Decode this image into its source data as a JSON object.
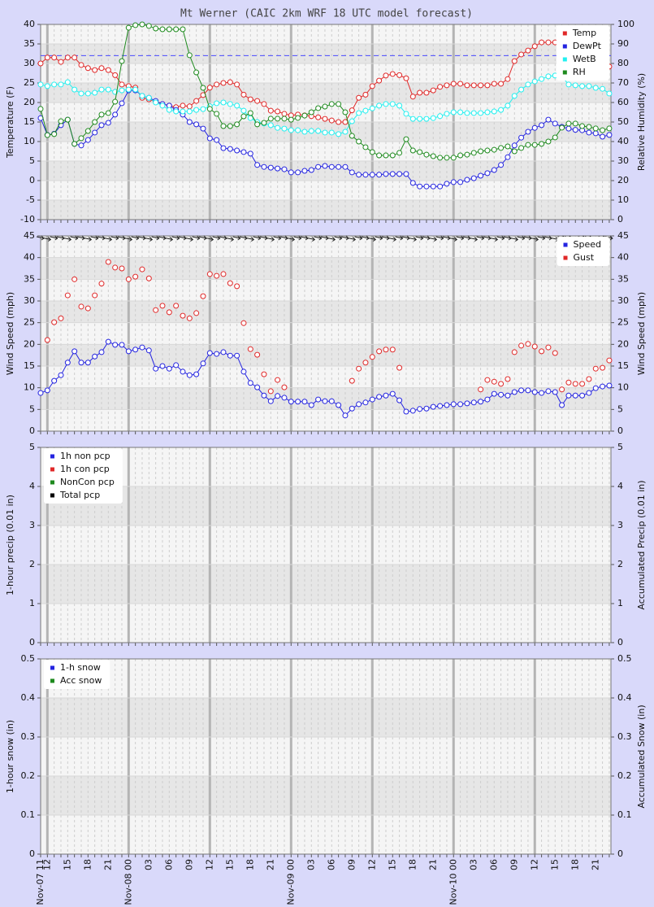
{
  "chart_data": [
    {
      "type": "line",
      "title": "Mt Werner (CAIC 2km WRF 18 UTC model forecast)",
      "ylabel": "Temperature (F)",
      "y2label": "Relative Humidity (%)",
      "ylim": [
        -10,
        40
      ],
      "yticks": [
        -10,
        -5,
        0,
        5,
        10,
        15,
        20,
        25,
        30,
        35,
        40
      ],
      "y2lim": [
        0,
        100
      ],
      "y2ticks": [
        0,
        10,
        20,
        30,
        40,
        50,
        60,
        70,
        80,
        90,
        100
      ],
      "reference_line": 32,
      "reference_color": "#4a4aff",
      "legend": "upper right",
      "series": [
        {
          "name": "Temp",
          "color": "#e02828",
          "values": [
            30,
            31.5,
            31.5,
            30.4,
            31.5,
            31.5,
            29.6,
            28.8,
            28.3,
            28.8,
            28.3,
            27,
            24.6,
            24.2,
            23.8,
            21.2,
            20.8,
            20.2,
            19.6,
            19.2,
            18.8,
            19.2,
            19,
            20.4,
            21.9,
            23.8,
            24.6,
            25,
            25.2,
            24.6,
            22,
            20.8,
            20.4,
            19.6,
            17.9,
            17.7,
            17.1,
            16.7,
            16.9,
            16.7,
            16.5,
            16.2,
            15.8,
            15.4,
            15,
            15,
            18,
            21.2,
            22,
            24.2,
            25.6,
            26.9,
            27.3,
            27,
            26.2,
            21.5,
            22.5,
            22.5,
            23.1,
            24,
            24.4,
            24.8,
            24.8,
            24.4,
            24.4,
            24.4,
            24.4,
            24.8,
            24.8,
            26,
            30.6,
            32.3,
            33.3,
            34.4,
            35.4,
            35.4,
            35.4,
            35,
            34,
            33,
            32,
            31,
            30,
            29.5,
            29.2
          ]
        },
        {
          "name": "DewPt",
          "color": "#2424e0",
          "values": [
            16,
            11.7,
            12,
            14.2,
            15.6,
            9.4,
            9,
            10.4,
            12.3,
            14.2,
            14.8,
            16.9,
            19.8,
            23.1,
            23.1,
            21.7,
            21.2,
            20.4,
            19.6,
            19.2,
            18.1,
            16.9,
            15,
            14.4,
            13.3,
            10.8,
            10.4,
            8.3,
            8.1,
            7.7,
            7.3,
            6.9,
            4,
            3.5,
            3.3,
            3.1,
            2.9,
            2.1,
            2.1,
            2.5,
            2.7,
            3.5,
            3.75,
            3.5,
            3.5,
            3.5,
            2.1,
            1.5,
            1.5,
            1.5,
            1.5,
            1.7,
            1.7,
            1.7,
            1.7,
            -0.6,
            -1.5,
            -1.5,
            -1.5,
            -1.5,
            -0.8,
            -0.4,
            -0.4,
            0.2,
            0.6,
            1.25,
            1.9,
            2.7,
            4,
            6,
            9,
            11,
            12.5,
            13.5,
            14.2,
            15.6,
            14.6,
            13.75,
            13.3,
            13,
            12.9,
            12.3,
            12.1,
            11.25,
            11.7
          ]
        },
        {
          "name": "WetB",
          "color": "#22f0f0",
          "values": [
            24.6,
            24.2,
            24.6,
            24.6,
            25.2,
            23.3,
            22.3,
            22.3,
            22.5,
            23.3,
            23.3,
            22.7,
            23.1,
            23.3,
            23.3,
            21.7,
            21.2,
            20,
            19.2,
            18.1,
            17.7,
            17.7,
            17.7,
            18.1,
            18.3,
            19,
            19.8,
            20,
            19.6,
            19.2,
            17.9,
            16,
            15,
            14.6,
            14.2,
            13.5,
            13.3,
            12.9,
            12.9,
            12.5,
            12.7,
            12.7,
            12.3,
            12.3,
            11.9,
            12.5,
            15.2,
            17.3,
            17.9,
            18.5,
            19.2,
            19.6,
            19.6,
            19.2,
            17.1,
            15.8,
            15.8,
            15.8,
            16,
            16.5,
            17.1,
            17.5,
            17.5,
            17.3,
            17.3,
            17.3,
            17.5,
            17.7,
            18.1,
            19.2,
            21.7,
            23.3,
            24.6,
            25.4,
            26,
            26.7,
            26.9,
            26.7,
            24.6,
            24.4,
            24.2,
            24.2,
            23.75,
            23.5,
            22.3
          ]
        },
        {
          "name": "RH",
          "color": "#1e8a1e",
          "axis": "y2",
          "values": [
            56.7,
            43.3,
            43.8,
            50.4,
            51.2,
            38.8,
            41.7,
            45.4,
            50,
            53.8,
            54.6,
            60.4,
            81.2,
            98.3,
            99.6,
            100,
            99.2,
            97.9,
            97.5,
            97.5,
            97.5,
            97.5,
            84.2,
            75.4,
            67.5,
            56.7,
            54.2,
            47.9,
            47.9,
            48.8,
            52.9,
            54.6,
            48.8,
            49.6,
            51.7,
            51.7,
            51.7,
            51.2,
            52.1,
            53.3,
            55,
            57.1,
            57.9,
            59.2,
            59.2,
            55,
            42.9,
            40,
            37.1,
            34.6,
            32.9,
            32.9,
            32.9,
            34.2,
            41.2,
            35.4,
            34.6,
            33.3,
            32.5,
            31.7,
            31.7,
            31.7,
            32.9,
            33.3,
            34.2,
            35,
            35.4,
            35.8,
            36.7,
            37.5,
            35,
            36.7,
            38.3,
            38.3,
            38.8,
            40,
            42.1,
            47.1,
            49.2,
            49.2,
            47.9,
            47.5,
            46.7,
            45.8,
            46.7
          ]
        }
      ]
    },
    {
      "type": "line",
      "ylabel": "Wind Speed (mph)",
      "y2label": "Wind Speed (mph)",
      "ylim": [
        0,
        45
      ],
      "yticks": [
        0,
        5,
        10,
        15,
        20,
        25,
        30,
        35,
        40,
        45
      ],
      "y2lim": [
        0,
        45
      ],
      "y2ticks": [
        0,
        5,
        10,
        15,
        20,
        25,
        30,
        35,
        40,
        45
      ],
      "wind_barbs": true,
      "legend": "upper right",
      "series": [
        {
          "name": "Speed",
          "color": "#2424e0",
          "values": [
            8.8,
            9.4,
            11.6,
            12.9,
            15.8,
            18.4,
            15.8,
            15.8,
            17.2,
            18.2,
            20.6,
            19.9,
            19.9,
            18.4,
            18.8,
            19.3,
            18.6,
            14.4,
            15,
            14.4,
            15.2,
            13.7,
            12.9,
            13.1,
            15.6,
            18,
            17.8,
            18.2,
            17.4,
            17.4,
            13.7,
            11.1,
            10.1,
            8.2,
            6.9,
            8.1,
            7.7,
            6.8,
            6.8,
            6.8,
            6,
            7.3,
            6.9,
            6.9,
            6,
            3.6,
            5.2,
            6.2,
            6.6,
            7.3,
            7.9,
            8.2,
            8.6,
            7.1,
            4.5,
            4.7,
            5.1,
            5.2,
            5.6,
            5.8,
            6,
            6.2,
            6.2,
            6.4,
            6.6,
            6.8,
            7.3,
            8.6,
            8.4,
            8.2,
            9,
            9.4,
            9.4,
            9,
            8.8,
            9.2,
            9,
            6,
            8.2,
            8.2,
            8.2,
            8.8,
            9.9,
            10.3,
            10.5
          ]
        },
        {
          "name": "Gust",
          "color": "#e02828",
          "lines": false,
          "values": [
            null,
            21,
            25.1,
            26,
            31.3,
            35,
            28.7,
            28.3,
            31.3,
            34,
            39,
            37.7,
            37.5,
            35,
            35.6,
            37.3,
            35.2,
            27.9,
            28.9,
            27.4,
            28.9,
            26.6,
            26,
            27.2,
            31.1,
            36.2,
            35.8,
            36.2,
            34.1,
            33.4,
            24.9,
            18.9,
            17.6,
            13.1,
            9.2,
            11.8,
            10.1,
            null,
            null,
            null,
            null,
            null,
            null,
            null,
            null,
            null,
            11.6,
            14.4,
            15.8,
            17.1,
            18.4,
            18.8,
            18.8,
            14.6,
            null,
            null,
            null,
            null,
            null,
            null,
            null,
            null,
            null,
            null,
            null,
            9.6,
            11.8,
            11.4,
            10.9,
            12,
            18.2,
            19.7,
            20.1,
            19.5,
            18.4,
            19.3,
            18,
            9.6,
            11.2,
            10.9,
            10.9,
            12,
            14.4,
            14.6,
            16.3
          ]
        }
      ]
    },
    {
      "type": "line",
      "ylabel": "1-hour precip (0.01 in)",
      "y2label": "Accumulated Precip (0.01 in)",
      "ylim": [
        0,
        5
      ],
      "yticks": [
        0,
        1,
        2,
        3,
        4,
        5
      ],
      "y2lim": [
        0,
        5
      ],
      "y2ticks": [
        0,
        1,
        2,
        3,
        4,
        5
      ],
      "legend": "upper left",
      "series": [
        {
          "name": "1h non pcp",
          "color": "#2424e0"
        },
        {
          "name": "1h con pcp",
          "color": "#e02828"
        },
        {
          "name": "NonCon pcp",
          "color": "#1e8a1e"
        },
        {
          "name": "Total pcp",
          "color": "#000000"
        }
      ]
    },
    {
      "type": "line",
      "ylabel": "1-hour snow (in)",
      "y2label": "Accumulated Snow (in)",
      "ylim": [
        0,
        0.5
      ],
      "yticks": [
        0,
        0.1,
        0.2,
        0.3,
        0.4,
        0.5
      ],
      "y2lim": [
        0,
        0.5
      ],
      "y2ticks": [
        0,
        0.1,
        0.2,
        0.3,
        0.4,
        0.5
      ],
      "legend": "upper left",
      "categories": [
        "Nov-07 11",
        "12",
        null,
        null,
        "15",
        null,
        null,
        "18",
        null,
        null,
        "21",
        null,
        null,
        "Nov-08 00",
        null,
        null,
        "03",
        null,
        null,
        "06",
        null,
        null,
        "09",
        null,
        null,
        "12",
        null,
        null,
        "15",
        null,
        null,
        "18",
        null,
        null,
        "21",
        null,
        null,
        "Nov-09 00",
        null,
        null,
        "03",
        null,
        null,
        "06",
        null,
        null,
        "09",
        null,
        null,
        "12",
        null,
        null,
        "15",
        null,
        null,
        "18",
        null,
        null,
        "21",
        null,
        null,
        "Nov-10 00",
        null,
        null,
        "03",
        null,
        null,
        "06",
        null,
        null,
        "09",
        null,
        null,
        "12",
        null,
        null,
        "15",
        null,
        null,
        "18",
        null,
        null,
        "21",
        null,
        null
      ],
      "series": [
        {
          "name": "1-h snow",
          "color": "#2424e0"
        },
        {
          "name": "Acc snow",
          "color": "#1e8a1e"
        }
      ]
    }
  ]
}
